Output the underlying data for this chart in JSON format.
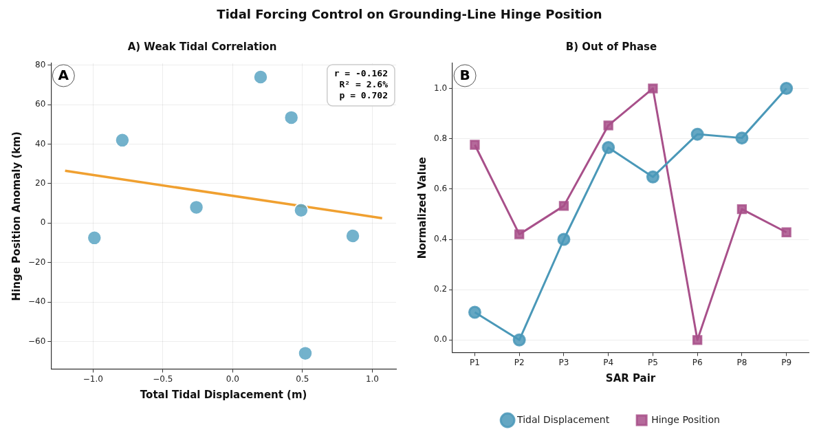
{
  "chart_data": [
    {
      "type": "other",
      "title": "Tidal Forcing Control on Grounding-Line Hinge Position"
    },
    {
      "type": "scatter",
      "title": "A) Weak Tidal Correlation",
      "xlabel": "Total Tidal Displacement (m)",
      "ylabel": "Hinge Position Anomaly (km)",
      "xlim": [
        -1.3,
        1.17
      ],
      "ylim": [
        -74,
        81
      ],
      "xticks": [
        {
          "value": -1,
          "label": "−1.0"
        },
        {
          "value": -0.5,
          "label": "−0.5"
        },
        {
          "value": 0,
          "label": "0.0"
        },
        {
          "value": 0.5,
          "label": "0.5"
        },
        {
          "value": 1,
          "label": "1.0"
        }
      ],
      "yticks": [
        {
          "value": -60,
          "label": "−60"
        },
        {
          "value": -40,
          "label": "−40"
        },
        {
          "value": -20,
          "label": "−20"
        },
        0,
        20,
        40,
        60,
        80
      ],
      "grid": true,
      "marker": "circle",
      "annotations": [
        "A",
        "r = -0.162",
        "R² = 2.6%",
        "p = 0.702"
      ],
      "series": [
        {
          "type": "scatter",
          "color": "#5ba5c3",
          "x": [
            -0.99,
            -0.79,
            -0.26,
            0.2,
            0.42,
            0.49,
            0.52,
            0.86
          ],
          "values": [
            -7.5,
            42,
            8,
            74,
            53.5,
            6.5,
            -66,
            -6.5
          ]
        },
        {
          "type": "line",
          "color": "#f0a030",
          "marker": "none",
          "x": [
            -1.2,
            1.07
          ],
          "values": [
            26.5,
            2.5
          ]
        }
      ]
    },
    {
      "type": "line",
      "title": "B) Out of Phase",
      "xlabel": "SAR Pair",
      "ylabel": "Normalized Value",
      "categories": [
        "P1",
        "P2",
        "P3",
        "P4",
        "P5",
        "P6",
        "P8",
        "P9"
      ],
      "ylim": [
        -0.05,
        1.1
      ],
      "yticks": [
        {
          "value": 0,
          "label": "0.0"
        },
        0.2,
        0.4,
        0.6,
        0.8,
        {
          "value": 1,
          "label": "1.0"
        }
      ],
      "grid": "y",
      "legend": "bottom",
      "annotations": [
        "B"
      ],
      "series": [
        {
          "name": "Tidal Displacement",
          "color": "#4a98b8",
          "marker": "circle",
          "values": [
            0.11,
            0,
            0.4,
            0.765,
            0.648,
            0.818,
            0.803,
            1.0
          ]
        },
        {
          "name": "Hinge Position",
          "color": "#a8508a",
          "marker": "square",
          "values": [
            0.776,
            0.42,
            0.533,
            0.853,
            1.0,
            0.0,
            0.52,
            0.428
          ]
        }
      ]
    }
  ]
}
